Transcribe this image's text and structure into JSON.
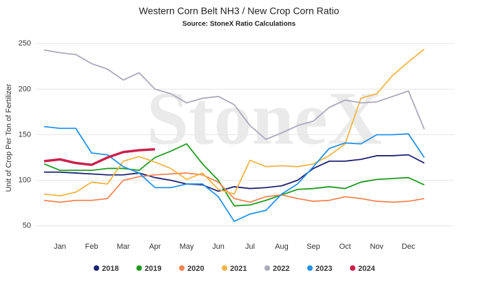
{
  "chart_data": {
    "type": "line",
    "title": "Western Corn Belt NH3 / New Crop Corn Ratio",
    "subtitle": "Source: StoneX Ratio Calculations",
    "watermark": "StoneX",
    "y_label": "Unit of Crop Per Ton of Fertilizer",
    "categories": [
      null,
      "Jan",
      null,
      "Feb",
      null,
      "Mar",
      null,
      "Apr",
      null,
      "May",
      null,
      "Jun",
      null,
      "Jul",
      null,
      "Aug",
      null,
      "Sep",
      null,
      "Oct",
      null,
      "Nov",
      null,
      "Dec",
      null
    ],
    "ylim": [
      37,
      260
    ],
    "yticks": [
      50,
      100,
      150,
      200,
      250
    ],
    "grid": true,
    "legend": "bottom",
    "series": [
      {
        "name": "2018",
        "color": "#1c2070",
        "values": [
          109,
          109,
          108,
          107,
          106,
          106,
          108,
          103,
          100,
          96,
          95,
          88,
          93,
          91,
          92,
          94,
          100,
          113,
          121,
          121,
          123,
          127,
          127,
          128,
          119
        ]
      },
      {
        "name": "2019",
        "color": "#1e9a1e",
        "values": [
          118,
          111,
          111,
          111,
          113,
          113,
          111,
          125,
          132,
          140,
          118,
          100,
          72,
          73,
          78,
          84,
          90,
          91,
          93,
          91,
          98,
          101,
          102,
          103,
          95
        ]
      },
      {
        "name": "2020",
        "color": "#f28452",
        "values": [
          78,
          76,
          78,
          78,
          80,
          100,
          104,
          106,
          107,
          108,
          106,
          98,
          80,
          76,
          82,
          84,
          80,
          77,
          78,
          82,
          80,
          77,
          76,
          77,
          80
        ]
      },
      {
        "name": "2021",
        "color": "#f2b445",
        "values": [
          85,
          83,
          87,
          98,
          96,
          121,
          126,
          120,
          113,
          101,
          108,
          90,
          85,
          122,
          115,
          116,
          115,
          118,
          127,
          140,
          190,
          195,
          215,
          230,
          244
        ]
      },
      {
        "name": "2022",
        "color": "#a9a9ba",
        "values": [
          243,
          240,
          238,
          228,
          222,
          210,
          218,
          200,
          195,
          185,
          190,
          192,
          183,
          160,
          145,
          152,
          160,
          165,
          180,
          188,
          185,
          186,
          192,
          198,
          156
        ]
      },
      {
        "name": "2023",
        "color": "#2391ea",
        "values": [
          159,
          157,
          157,
          130,
          128,
          115,
          108,
          92,
          92,
          96,
          96,
          82,
          55,
          63,
          67,
          85,
          96,
          115,
          135,
          141,
          140,
          150,
          150,
          151,
          125
        ]
      },
      {
        "name": "2024",
        "color": "#c9214c",
        "values": [
          121,
          123,
          119,
          117,
          125,
          131,
          133,
          134,
          null,
          null,
          null,
          null,
          null,
          null,
          null,
          null,
          null,
          null,
          null,
          null,
          null,
          null,
          null,
          null,
          null
        ]
      }
    ]
  }
}
